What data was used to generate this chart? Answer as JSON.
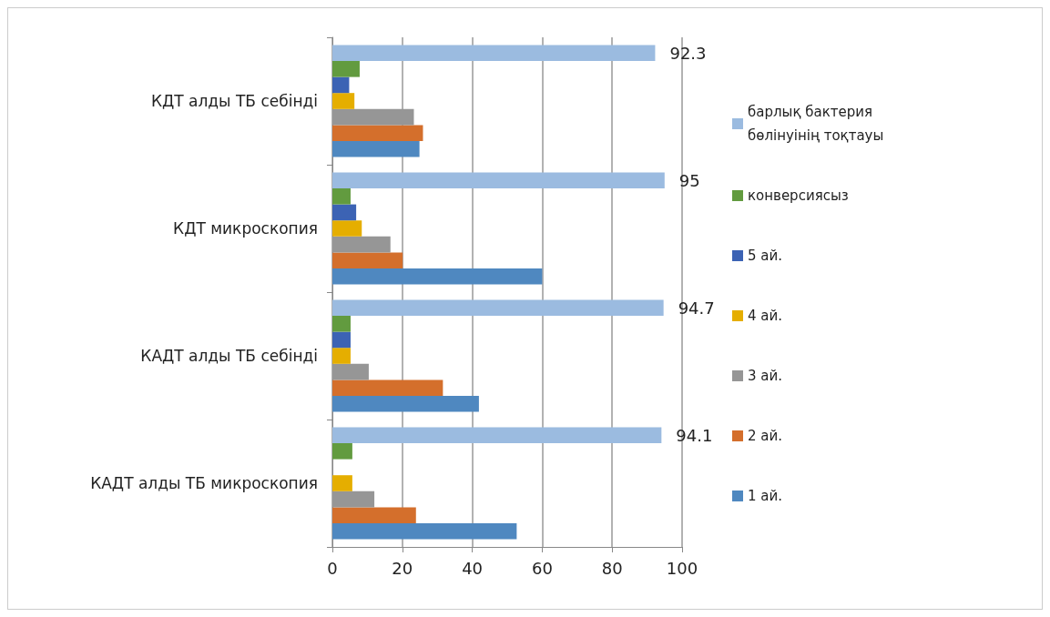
{
  "chart_data": {
    "type": "bar",
    "orientation": "horizontal",
    "categories": [
      "КДТ алды ТБ себінді",
      "КДТ микроскопия",
      "КАДТ алды ТБ себінді",
      "КАДТ алды ТБ микроскопия"
    ],
    "series": [
      {
        "name": "барлық бактерия бөлінуінің тоқтауы",
        "color": "#9bbbe0",
        "values": [
          92.3,
          95,
          94.7,
          94.1
        ],
        "value_labels": [
          "92.3",
          "95",
          "94.7",
          "94.1"
        ]
      },
      {
        "name": "конверсиясыз",
        "color": "#629b3f",
        "values": [
          7.8,
          5.2,
          5.2,
          5.7
        ]
      },
      {
        "name": "5 ай.",
        "color": "#3c63b4",
        "values": [
          4.8,
          6.8,
          5.2,
          null
        ]
      },
      {
        "name": "4 ай.",
        "color": "#e5ae00",
        "values": [
          6.3,
          8.4,
          5.2,
          5.7
        ]
      },
      {
        "name": "3 ай.",
        "color": "#969696",
        "values": [
          23.3,
          16.6,
          10.4,
          12
        ]
      },
      {
        "name": "2 ай.",
        "color": "#d46f2c",
        "values": [
          25.9,
          20.1,
          31.6,
          23.9
        ]
      },
      {
        "name": "1 ай.",
        "color": "#4f88c0",
        "values": [
          24.9,
          60,
          41.9,
          52.7
        ]
      }
    ],
    "xlim": [
      0,
      100
    ],
    "xticks": [
      0,
      20,
      40,
      60,
      80,
      100
    ],
    "grid": "x",
    "legend": "right"
  }
}
